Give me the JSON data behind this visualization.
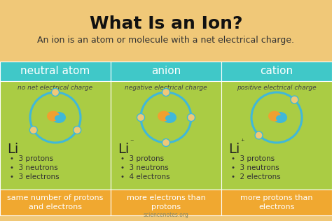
{
  "title": "What Is an Ion?",
  "subtitle": "An ion is an atom or molecule with a net electrical charge.",
  "bg_color": "#F0C878",
  "header_bg": "#40C8C8",
  "content_bg": "#AACC44",
  "footer_bg": "#F0A830",
  "title_color": "#111111",
  "subtitle_color": "#333333",
  "header_text_color": "#ffffff",
  "columns": [
    "neutral atom",
    "anion",
    "cation"
  ],
  "col_subtitles": [
    "no net electrical charge",
    "negative electrical charge",
    "positive electrical charge"
  ],
  "symbols": [
    "Li",
    "Li",
    "Li"
  ],
  "superscripts": [
    "",
    " ⁻",
    " ⁺"
  ],
  "bullets": [
    [
      "3 protons",
      "3 neutrons",
      "3 electrons"
    ],
    [
      "3 protons",
      "3 neutrons",
      "4 electrons"
    ],
    [
      "3 protons",
      "3 neutrons",
      "2 electrons"
    ]
  ],
  "footers": [
    "same number of protons\nand electrons",
    "more electrons than\nprotons",
    "more protons than\nelectrons"
  ],
  "electrons": [
    3,
    4,
    2
  ],
  "atom_color_blue": "#40B8D8",
  "atom_color_orange": "#F0A030",
  "electron_color": "#F0C878",
  "orbit_color": "#40B8D8",
  "watermark": "sciencenotes.org",
  "title_fontsize": 18,
  "subtitle_fontsize": 9,
  "header_fontsize": 11,
  "col_subtitle_fontsize": 6.5,
  "symbol_fontsize": 14,
  "bullet_fontsize": 7.5,
  "footer_fontsize": 8
}
